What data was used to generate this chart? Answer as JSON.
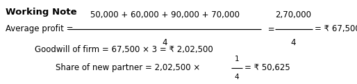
{
  "title": "Working Note",
  "line1_label": "Average profit = ",
  "line1_numerator": "50,000 + 60,000 + 90,000 + 70,000",
  "line1_denominator": "4",
  "line1_eq": " = ",
  "line1_num2": "2,70,000",
  "line1_den2": "4",
  "line1_result": "= ₹ 67,500",
  "line2": "Goodwill of firm = 67,500 × 3 = ₹ 2,02,500",
  "line3_pre": "Share of new partner = 2,02,500 ×",
  "line3_num": "1",
  "line3_den": "4",
  "line3_post": "= ₹ 50,625",
  "bg_color": "#ffffff",
  "text_color": "#000000",
  "font_size": 8.5,
  "title_font_size": 9.5
}
